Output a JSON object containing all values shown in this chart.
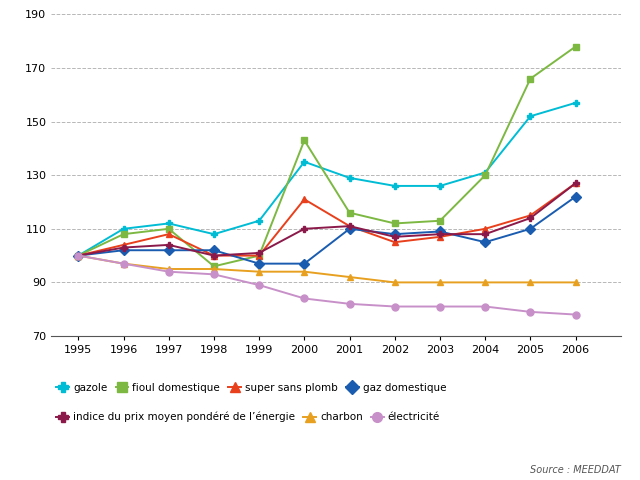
{
  "years": [
    1995,
    1996,
    1997,
    1998,
    1999,
    2000,
    2001,
    2002,
    2003,
    2004,
    2005,
    2006
  ],
  "series": {
    "gazole": {
      "values": [
        100,
        110,
        112,
        108,
        113,
        135,
        129,
        126,
        126,
        131,
        152,
        157
      ],
      "color": "#00bcd4",
      "marker": "P",
      "label": "gazole"
    },
    "fioul_domestique": {
      "values": [
        100,
        108,
        110,
        96,
        100,
        143,
        116,
        112,
        113,
        130,
        166,
        178
      ],
      "color": "#7cb842",
      "marker": "s",
      "label": "fioul domestique"
    },
    "super_sans_plomb": {
      "values": [
        100,
        104,
        108,
        100,
        100,
        121,
        111,
        105,
        107,
        110,
        115,
        127
      ],
      "color": "#e8401c",
      "marker": "^",
      "label": "super sans plomb"
    },
    "gaz_domestique": {
      "values": [
        100,
        102,
        102,
        102,
        97,
        97,
        110,
        108,
        109,
        105,
        110,
        122
      ],
      "color": "#1a5cb0",
      "marker": "D",
      "label": "gaz domestique"
    },
    "indice_prix_moyen": {
      "values": [
        100,
        103,
        104,
        100,
        101,
        110,
        111,
        107,
        108,
        108,
        114,
        127
      ],
      "color": "#8b1a4a",
      "marker": "P",
      "label": "indice du prix moyen pondéré de l’énergie"
    },
    "charbon": {
      "values": [
        100,
        97,
        95,
        95,
        94,
        94,
        92,
        90,
        90,
        90,
        90,
        90
      ],
      "color": "#e8a020",
      "marker": "^",
      "label": "charbon"
    },
    "electricite": {
      "values": [
        100,
        97,
        94,
        93,
        89,
        84,
        82,
        81,
        81,
        81,
        79,
        78
      ],
      "color": "#c890c8",
      "marker": "o",
      "label": "électricité"
    }
  },
  "ylim": [
    70,
    190
  ],
  "yticks": [
    70,
    90,
    110,
    130,
    150,
    170,
    190
  ],
  "ytick_labels": [
    "70",
    "90",
    "110",
    "130",
    "150",
    "170",
    "190"
  ],
  "xlim_left": 1994.4,
  "xlim_right": 2007.0,
  "background_color": "#ffffff",
  "source_text": "Source : MEEDDAT",
  "grid_color": "#888888",
  "markersize": 5,
  "linewidth": 1.4
}
